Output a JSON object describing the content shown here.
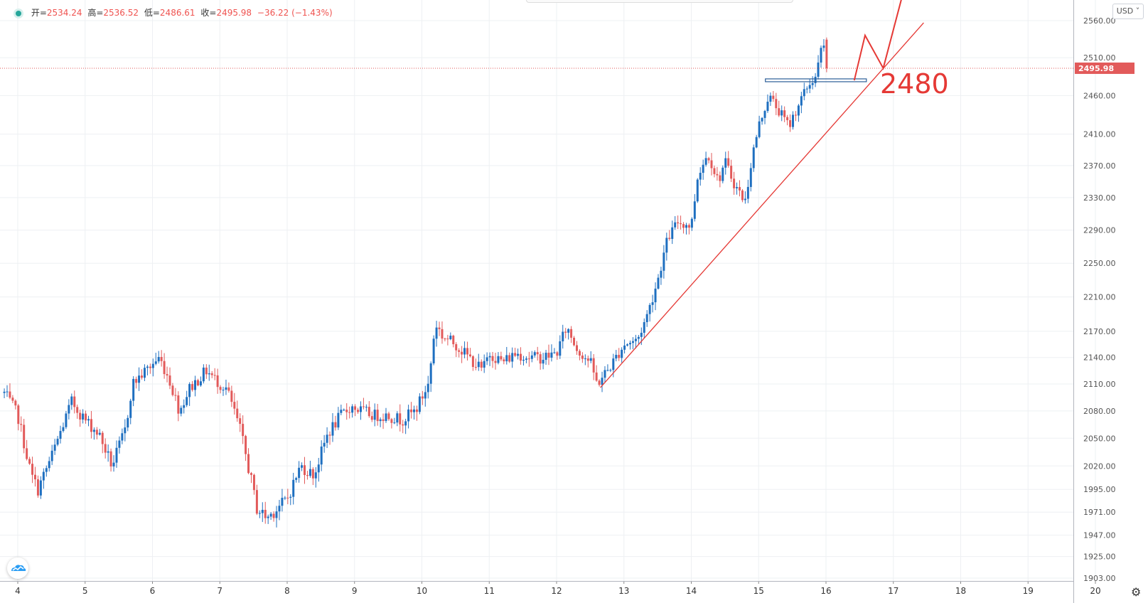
{
  "legend": {
    "open_label": "开=",
    "open": "2534.24",
    "high_label": "高=",
    "high": "2536.52",
    "low_label": "低=",
    "low": "2486.61",
    "close_label": "收=",
    "close": "2495.98",
    "change": "−36.22 (−1.43%)"
  },
  "currency": "USD",
  "price_tag": "2495.98",
  "annotation_text": "2480",
  "colors": {
    "up": "#1e6fc0",
    "down": "#e25a5a",
    "annotation": "#e53935",
    "support_box": "#2b5d97",
    "grid": "#eef0f3"
  },
  "chart_data": {
    "type": "candlestick",
    "x_ticks": [
      "4",
      "5",
      "6",
      "7",
      "8",
      "9",
      "10",
      "11",
      "12",
      "13",
      "14",
      "15",
      "16",
      "17",
      "18",
      "19",
      "20"
    ],
    "x_range": [
      3.95,
      20.15
    ],
    "y_ticks": [
      "2560.00",
      "2510.00",
      "2460.00",
      "2410.00",
      "2370.00",
      "2330.00",
      "2290.00",
      "2250.00",
      "2210.00",
      "2170.00",
      "2140.00",
      "2110.00",
      "2080.00",
      "2050.00",
      "2020.00",
      "1995.00",
      "1971.00",
      "1947.00",
      "1925.00",
      "1903.00"
    ],
    "y_scale": "log",
    "last_price": 2495.98,
    "candle_step_days": 0.04167,
    "keypoints": [
      [
        3.8,
        2100
      ],
      [
        4.0,
        2075
      ],
      [
        4.2,
        2010
      ],
      [
        4.3,
        1995
      ],
      [
        4.5,
        2030
      ],
      [
        4.8,
        2090
      ],
      [
        5.0,
        2070
      ],
      [
        5.2,
        2055
      ],
      [
        5.4,
        2020
      ],
      [
        5.6,
        2060
      ],
      [
        5.7,
        2110
      ],
      [
        5.9,
        2125
      ],
      [
        6.1,
        2140
      ],
      [
        6.25,
        2115
      ],
      [
        6.4,
        2080
      ],
      [
        6.55,
        2105
      ],
      [
        6.8,
        2125
      ],
      [
        7.0,
        2110
      ],
      [
        7.1,
        2105
      ],
      [
        7.3,
        2060
      ],
      [
        7.45,
        2010
      ],
      [
        7.55,
        1975
      ],
      [
        7.7,
        1965
      ],
      [
        7.85,
        1975
      ],
      [
        8.0,
        1985
      ],
      [
        8.2,
        2020
      ],
      [
        8.4,
        2010
      ],
      [
        8.6,
        2055
      ],
      [
        8.8,
        2075
      ],
      [
        8.95,
        2085
      ],
      [
        9.1,
        2080
      ],
      [
        9.3,
        2075
      ],
      [
        9.5,
        2075
      ],
      [
        9.7,
        2070
      ],
      [
        9.9,
        2080
      ],
      [
        10.1,
        2110
      ],
      [
        10.2,
        2180
      ],
      [
        10.3,
        2165
      ],
      [
        10.5,
        2155
      ],
      [
        10.7,
        2140
      ],
      [
        10.9,
        2125
      ],
      [
        11.0,
        2145
      ],
      [
        11.2,
        2135
      ],
      [
        11.4,
        2145
      ],
      [
        11.6,
        2140
      ],
      [
        11.8,
        2140
      ],
      [
        12.0,
        2145
      ],
      [
        12.15,
        2175
      ],
      [
        12.3,
        2150
      ],
      [
        12.5,
        2135
      ],
      [
        12.6,
        2110
      ],
      [
        12.8,
        2130
      ],
      [
        13.0,
        2155
      ],
      [
        13.2,
        2160
      ],
      [
        13.35,
        2190
      ],
      [
        13.5,
        2230
      ],
      [
        13.65,
        2280
      ],
      [
        13.8,
        2300
      ],
      [
        14.0,
        2295
      ],
      [
        14.1,
        2360
      ],
      [
        14.25,
        2385
      ],
      [
        14.4,
        2350
      ],
      [
        14.5,
        2375
      ],
      [
        14.65,
        2345
      ],
      [
        14.8,
        2325
      ],
      [
        14.9,
        2380
      ],
      [
        15.0,
        2420
      ],
      [
        15.15,
        2460
      ],
      [
        15.3,
        2440
      ],
      [
        15.45,
        2420
      ],
      [
        15.6,
        2450
      ],
      [
        15.75,
        2475
      ],
      [
        15.85,
        2485
      ],
      [
        15.95,
        2530
      ],
      [
        16.04,
        2496
      ]
    ],
    "trendline": {
      "from": [
        12.65,
        2106
      ],
      "to": [
        17.45,
        2557
      ]
    },
    "support_level": {
      "price": 2480,
      "from_day": 15.1,
      "to_day": 16.6
    },
    "projection_path": [
      [
        16.42,
        2480
      ],
      [
        16.58,
        2540
      ],
      [
        16.85,
        2496
      ],
      [
        17.15,
        2600
      ]
    ],
    "annotations": [
      "2480"
    ],
    "grid": true
  }
}
